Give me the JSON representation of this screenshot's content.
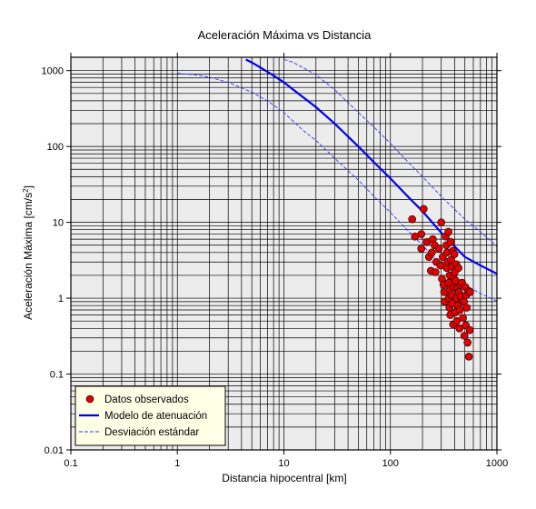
{
  "chart_data": {
    "type": "scatter",
    "title": "Aceleración Máxima vs Distancia",
    "xlabel": "Distancia hipocentral [km]",
    "ylabel_main": "Aceleración Máxima [cm/s",
    "ylabel_sup": "2",
    "ylabel_end": "]",
    "xscale": "log",
    "yscale": "log",
    "xlim": [
      0.1,
      1000
    ],
    "ylim": [
      0.01,
      1500
    ],
    "x_ticks": [
      {
        "value": 0.1,
        "label": "0.1"
      },
      {
        "value": 1,
        "label": "1"
      },
      {
        "value": 10,
        "label": "10"
      },
      {
        "value": 100,
        "label": "100"
      },
      {
        "value": 1000,
        "label": "1000"
      }
    ],
    "y_ticks": [
      {
        "value": 0.01,
        "label": "0.01"
      },
      {
        "value": 0.1,
        "label": "0.1"
      },
      {
        "value": 1,
        "label": "1"
      },
      {
        "value": 10,
        "label": "10"
      },
      {
        "value": 100,
        "label": "100"
      },
      {
        "value": 1000,
        "label": "1000"
      }
    ],
    "grid": true,
    "legend_position": "bottom-left",
    "legend": [
      {
        "label": "Datos observados",
        "kind": "marker"
      },
      {
        "label": "Modelo de atenuación",
        "kind": "solid"
      },
      {
        "label": "Desviación estándar",
        "kind": "dashed"
      }
    ],
    "colors": {
      "points": "#e00000",
      "model": "#0000ee",
      "stddev": "#3333ff",
      "plot_bg": "#ececec",
      "legend_bg": "#ffffe6"
    },
    "model_curve": {
      "x": [
        4.4,
        5,
        6,
        8,
        10,
        15,
        20,
        30,
        50,
        70,
        100,
        150,
        200,
        300,
        500,
        700,
        1000
      ],
      "y": [
        1400,
        1280,
        1100,
        860,
        700,
        450,
        330,
        200,
        100,
        62,
        38,
        21,
        14,
        7.3,
        3.5,
        2.7,
        2.1
      ]
    },
    "stddev_upper": {
      "x": [
        10,
        12,
        15,
        20,
        30,
        50,
        70,
        100,
        150,
        200,
        300,
        500,
        700,
        1000
      ],
      "y": [
        1400,
        1300,
        1100,
        880,
        560,
        280,
        180,
        110,
        60,
        40,
        22,
        11,
        7.5,
        4.8
      ]
    },
    "stddev_lower": {
      "x": [
        1,
        1.5,
        2,
        3,
        5,
        7,
        10,
        15,
        20,
        30,
        50,
        70,
        100,
        150,
        200,
        300,
        500,
        700,
        1000
      ],
      "y": [
        920,
        880,
        820,
        700,
        520,
        400,
        280,
        165,
        120,
        70,
        36,
        22,
        13.5,
        7.5,
        5,
        2.7,
        1.5,
        1.15,
        0.92
      ]
    },
    "points": [
      {
        "x": 160,
        "y": 11
      },
      {
        "x": 170,
        "y": 6.5
      },
      {
        "x": 195,
        "y": 7
      },
      {
        "x": 205,
        "y": 15
      },
      {
        "x": 195,
        "y": 4.5
      },
      {
        "x": 220,
        "y": 5.5
      },
      {
        "x": 230,
        "y": 3.5
      },
      {
        "x": 245,
        "y": 4
      },
      {
        "x": 240,
        "y": 2.3
      },
      {
        "x": 250,
        "y": 6
      },
      {
        "x": 260,
        "y": 5
      },
      {
        "x": 265,
        "y": 2.2
      },
      {
        "x": 270,
        "y": 3
      },
      {
        "x": 285,
        "y": 4.5
      },
      {
        "x": 295,
        "y": 2.7
      },
      {
        "x": 300,
        "y": 10
      },
      {
        "x": 305,
        "y": 1.8
      },
      {
        "x": 310,
        "y": 3.5
      },
      {
        "x": 315,
        "y": 1.5
      },
      {
        "x": 320,
        "y": 1.2
      },
      {
        "x": 322,
        "y": 0.9
      },
      {
        "x": 330,
        "y": 6.5
      },
      {
        "x": 335,
        "y": 5
      },
      {
        "x": 338,
        "y": 2.5
      },
      {
        "x": 340,
        "y": 4
      },
      {
        "x": 345,
        "y": 3
      },
      {
        "x": 350,
        "y": 7.5
      },
      {
        "x": 352,
        "y": 1.6
      },
      {
        "x": 355,
        "y": 1
      },
      {
        "x": 358,
        "y": 0.75
      },
      {
        "x": 360,
        "y": 2
      },
      {
        "x": 362,
        "y": 1.3
      },
      {
        "x": 365,
        "y": 0.6
      },
      {
        "x": 368,
        "y": 5.5
      },
      {
        "x": 370,
        "y": 3.2
      },
      {
        "x": 375,
        "y": 1.1
      },
      {
        "x": 378,
        "y": 2.6
      },
      {
        "x": 380,
        "y": 0.85
      },
      {
        "x": 385,
        "y": 4.2
      },
      {
        "x": 388,
        "y": 0.45
      },
      {
        "x": 390,
        "y": 1.9
      },
      {
        "x": 395,
        "y": 1.4
      },
      {
        "x": 398,
        "y": 3.8
      },
      {
        "x": 402,
        "y": 2.2
      },
      {
        "x": 405,
        "y": 0.65
      },
      {
        "x": 410,
        "y": 1.7
      },
      {
        "x": 415,
        "y": 2.8
      },
      {
        "x": 418,
        "y": 1
      },
      {
        "x": 420,
        "y": 0.5
      },
      {
        "x": 425,
        "y": 1.35
      },
      {
        "x": 430,
        "y": 0.8
      },
      {
        "x": 435,
        "y": 2.5
      },
      {
        "x": 440,
        "y": 1.2
      },
      {
        "x": 445,
        "y": 0.4
      },
      {
        "x": 450,
        "y": 0.7
      },
      {
        "x": 455,
        "y": 1.5
      },
      {
        "x": 460,
        "y": 1.05
      },
      {
        "x": 470,
        "y": 1.6
      },
      {
        "x": 480,
        "y": 0.55
      },
      {
        "x": 490,
        "y": 0.9
      },
      {
        "x": 495,
        "y": 0.32
      },
      {
        "x": 505,
        "y": 1.4
      },
      {
        "x": 510,
        "y": 0.44
      },
      {
        "x": 515,
        "y": 1.1
      },
      {
        "x": 520,
        "y": 0.75
      },
      {
        "x": 530,
        "y": 0.26
      },
      {
        "x": 540,
        "y": 1.25
      },
      {
        "x": 545,
        "y": 0.17
      },
      {
        "x": 555,
        "y": 0.38
      },
      {
        "x": 560,
        "y": 1.2
      }
    ]
  }
}
